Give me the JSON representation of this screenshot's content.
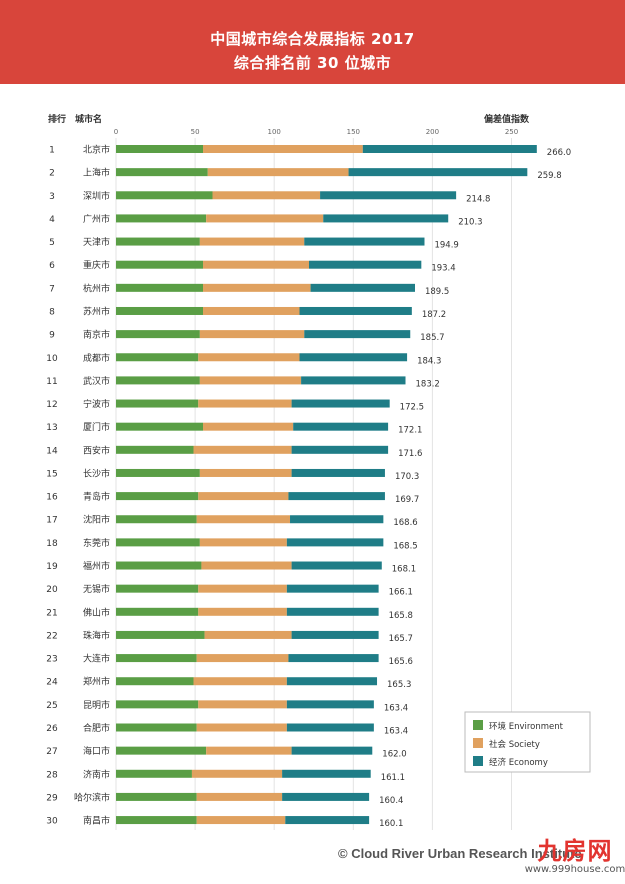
{
  "header": {
    "title_line1": "中国城市综合发展指标 2017",
    "title_line2": "综合排名前 30 位城市"
  },
  "chart_data": {
    "type": "bar",
    "orientation": "horizontal",
    "stacked": true,
    "rank_header": "排行",
    "city_header": "城市名",
    "value_header": "偏差值指数",
    "xlim": [
      0,
      270
    ],
    "xticks": [
      0,
      50,
      100,
      150,
      200,
      250
    ],
    "ranks": [
      "1",
      "2",
      "3",
      "4",
      "5",
      "6",
      "7",
      "8",
      "9",
      "10",
      "11",
      "12",
      "13",
      "14",
      "15",
      "16",
      "17",
      "18",
      "19",
      "20",
      "21",
      "22",
      "23",
      "24",
      "25",
      "26",
      "27",
      "28",
      "29",
      "30"
    ],
    "categories": [
      "北京市",
      "上海市",
      "深圳市",
      "广州市",
      "天津市",
      "重庆市",
      "杭州市",
      "苏州市",
      "南京市",
      "成都市",
      "武汉市",
      "宁波市",
      "厦门市",
      "西安市",
      "长沙市",
      "青岛市",
      "沈阳市",
      "东莞市",
      "福州市",
      "无锡市",
      "佛山市",
      "珠海市",
      "大连市",
      "郑州市",
      "昆明市",
      "合肥市",
      "海口市",
      "济南市",
      "哈尔滨市",
      "南昌市"
    ],
    "series": [
      {
        "name": "环境 Environment",
        "color": "#5a9e45",
        "values": [
          55,
          58,
          61,
          57,
          53,
          55,
          55,
          55,
          53,
          52,
          53,
          52,
          55,
          49,
          53,
          52,
          51,
          53,
          54,
          52,
          52,
          56,
          51,
          49,
          52,
          51,
          57,
          48,
          51,
          51
        ]
      },
      {
        "name": "社会 Society",
        "color": "#e0a15f",
        "values": [
          101,
          89,
          68,
          74,
          66,
          67,
          68,
          61,
          66,
          64,
          64,
          59,
          57,
          62,
          58,
          57,
          59,
          55,
          57,
          56,
          56,
          55,
          58,
          59,
          56,
          57,
          54,
          57,
          54,
          56
        ]
      },
      {
        "name": "经济 Economy",
        "color": "#1f7d87",
        "values": [
          110,
          113,
          86,
          79,
          76,
          71,
          66,
          71,
          67,
          68,
          66,
          62,
          60,
          61,
          59,
          61,
          59,
          61,
          57,
          58,
          58,
          55,
          57,
          57,
          55,
          55,
          51,
          56,
          55,
          53
        ]
      }
    ],
    "totals": [
      "266.0",
      "259.8",
      "214.8",
      "210.3",
      "194.9",
      "193.4",
      "189.5",
      "187.2",
      "185.7",
      "184.3",
      "183.2",
      "172.5",
      "172.1",
      "171.6",
      "170.3",
      "169.7",
      "168.6",
      "168.5",
      "168.1",
      "166.1",
      "165.8",
      "165.7",
      "165.6",
      "165.3",
      "163.4",
      "163.4",
      "162.0",
      "161.1",
      "160.4",
      "160.1"
    ],
    "legend_position": "bottom-right",
    "grid": "vertical"
  },
  "footer": {
    "credit": "© Cloud River Urban Research Institute",
    "watermark_main": "九房网",
    "watermark_url": "www.999house.com"
  }
}
